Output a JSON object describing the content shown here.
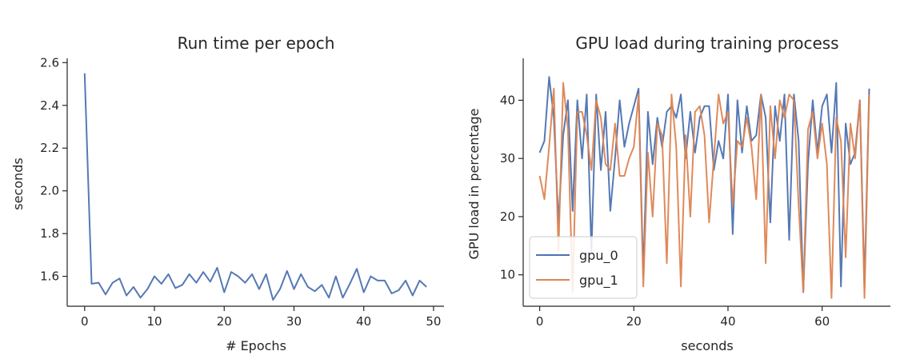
{
  "chart_data": [
    {
      "type": "line",
      "title": "Run time per epoch",
      "xlabel": "# Epochs",
      "ylabel": "seconds",
      "xlim": [
        -2.5,
        51.5
      ],
      "ylim": [
        1.46,
        2.62
      ],
      "xticks": [
        0,
        10,
        20,
        30,
        40,
        50
      ],
      "yticks": [
        1.6,
        1.8,
        2.0,
        2.2,
        2.4,
        2.6
      ],
      "ytick_labels": [
        "1.6",
        "1.8",
        "2.0",
        "2.2",
        "2.4",
        "2.6"
      ],
      "grid": false,
      "series": [
        {
          "color": "#4c72b0",
          "x": [
            0,
            1,
            2,
            3,
            4,
            5,
            6,
            7,
            8,
            9,
            10,
            11,
            12,
            13,
            14,
            15,
            16,
            17,
            18,
            19,
            20,
            21,
            22,
            23,
            24,
            25,
            26,
            27,
            28,
            29,
            30,
            31,
            32,
            33,
            34,
            35,
            36,
            37,
            38,
            39,
            40,
            41,
            42,
            43,
            44,
            45,
            46,
            47,
            48,
            49
          ],
          "y": [
            2.55,
            1.565,
            1.57,
            1.515,
            1.57,
            1.59,
            1.51,
            1.55,
            1.5,
            1.54,
            1.6,
            1.565,
            1.61,
            1.545,
            1.56,
            1.61,
            1.57,
            1.62,
            1.575,
            1.64,
            1.525,
            1.62,
            1.6,
            1.57,
            1.61,
            1.54,
            1.61,
            1.49,
            1.54,
            1.625,
            1.54,
            1.61,
            1.55,
            1.53,
            1.56,
            1.5,
            1.6,
            1.5,
            1.565,
            1.635,
            1.525,
            1.6,
            1.58,
            1.58,
            1.52,
            1.535,
            1.58,
            1.51,
            1.58,
            1.55
          ]
        }
      ]
    },
    {
      "type": "line",
      "title": "GPU load during training process",
      "xlabel": "seconds",
      "ylabel": "GPU load in percentage",
      "xlim": [
        -3.5,
        74.5
      ],
      "ylim": [
        4.6,
        47.2
      ],
      "xticks": [
        0,
        20,
        40,
        60
      ],
      "yticks": [
        10,
        20,
        30,
        40
      ],
      "grid": false,
      "legend_position": "lower-left",
      "series": [
        {
          "name": "gpu_0",
          "color": "#4c72b0",
          "x": [
            0,
            1,
            2,
            3,
            4,
            5,
            6,
            7,
            8,
            9,
            10,
            11,
            12,
            13,
            14,
            15,
            16,
            17,
            18,
            19,
            20,
            21,
            22,
            23,
            24,
            25,
            26,
            27,
            28,
            29,
            30,
            31,
            32,
            33,
            34,
            35,
            36,
            37,
            38,
            39,
            40,
            41,
            42,
            43,
            44,
            45,
            46,
            47,
            48,
            49,
            50,
            51,
            52,
            53,
            54,
            55,
            56,
            57,
            58,
            59,
            60,
            61,
            62,
            63,
            64,
            65,
            66,
            67,
            68,
            69,
            70
          ],
          "y": [
            31,
            33,
            44,
            37,
            19,
            34,
            40,
            21,
            40,
            30,
            41,
            14,
            41,
            28,
            38,
            21,
            30,
            40,
            32,
            36,
            39,
            42,
            10,
            38,
            29,
            37,
            32,
            38,
            39,
            37,
            41,
            30,
            38,
            31,
            37,
            39,
            39,
            28,
            33,
            30,
            41,
            17,
            40,
            31,
            39,
            33,
            34,
            41,
            37,
            19,
            39,
            33,
            41,
            16,
            41,
            33,
            7,
            29,
            40,
            31,
            39,
            41,
            31,
            43,
            8,
            36,
            29,
            31,
            40,
            8,
            42
          ]
        },
        {
          "name": "gpu_1",
          "color": "#dd8452",
          "x": [
            0,
            1,
            2,
            3,
            4,
            5,
            6,
            7,
            8,
            9,
            10,
            11,
            12,
            13,
            14,
            15,
            16,
            17,
            18,
            19,
            20,
            21,
            22,
            23,
            24,
            25,
            26,
            27,
            28,
            29,
            30,
            31,
            32,
            33,
            34,
            35,
            36,
            37,
            38,
            39,
            40,
            41,
            42,
            43,
            44,
            45,
            46,
            47,
            48,
            49,
            50,
            51,
            52,
            53,
            54,
            55,
            56,
            57,
            58,
            59,
            60,
            61,
            62,
            63,
            64,
            65,
            66,
            67,
            68,
            69,
            70
          ],
          "y": [
            27,
            23,
            32,
            42,
            14,
            43,
            35,
            7,
            38,
            38,
            34,
            28,
            40,
            37,
            29,
            28,
            36,
            27,
            27,
            30,
            32,
            41,
            8,
            31,
            20,
            36,
            34,
            12,
            41,
            32,
            8,
            34,
            20,
            38,
            39,
            34,
            19,
            30,
            41,
            36,
            38,
            22,
            33,
            32,
            37,
            32,
            23,
            41,
            12,
            39,
            30,
            40,
            37,
            41,
            40,
            22,
            7,
            35,
            38,
            30,
            36,
            29,
            6,
            37,
            33,
            13,
            36,
            30,
            40,
            6,
            41
          ]
        }
      ]
    }
  ]
}
